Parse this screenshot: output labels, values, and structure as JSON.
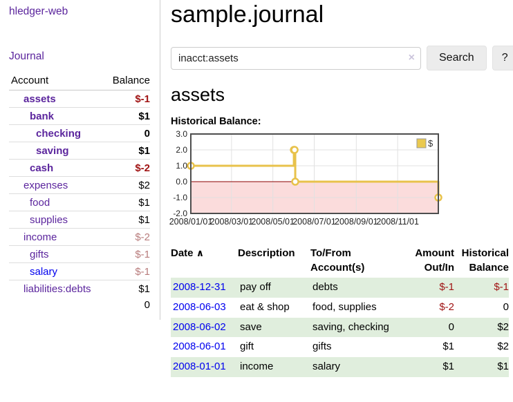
{
  "app": {
    "title": "hledger-web"
  },
  "sidebar": {
    "nav_journal": "Journal",
    "accounts": {
      "col_account": "Account",
      "col_balance": "Balance",
      "rows": [
        {
          "name": "assets",
          "depth": 0,
          "bold": true,
          "balance": "$-1",
          "neg": "strong"
        },
        {
          "name": "bank",
          "depth": 1,
          "bold": true,
          "balance": "$1",
          "neg": "none"
        },
        {
          "name": "checking",
          "depth": 2,
          "bold": true,
          "balance": "0",
          "neg": "none"
        },
        {
          "name": "saving",
          "depth": 2,
          "bold": true,
          "balance": "$1",
          "neg": "none"
        },
        {
          "name": "cash",
          "depth": 1,
          "bold": true,
          "balance": "$-2",
          "neg": "strong"
        },
        {
          "name": "expenses",
          "depth": 0,
          "bold": false,
          "balance": "$2",
          "neg": "none"
        },
        {
          "name": "food",
          "depth": 1,
          "bold": false,
          "balance": "$1",
          "neg": "none"
        },
        {
          "name": "supplies",
          "depth": 1,
          "bold": false,
          "balance": "$1",
          "neg": "none"
        },
        {
          "name": "income",
          "depth": 0,
          "bold": false,
          "balance": "$-2",
          "neg": "muted"
        },
        {
          "name": "gifts",
          "depth": 1,
          "bold": false,
          "balance": "$-1",
          "neg": "muted"
        },
        {
          "name": "salary",
          "depth": 1,
          "bold": false,
          "balance": "$-1",
          "neg": "muted",
          "link": "blue"
        },
        {
          "name": "liabilities:debts",
          "depth": 0,
          "bold": false,
          "balance": "$1",
          "neg": "none"
        }
      ],
      "total": "0"
    }
  },
  "header": {
    "title": "sample.journal"
  },
  "search": {
    "value": "inacct:assets",
    "button": "Search",
    "help": "?"
  },
  "icons": {
    "clear": "×",
    "sort_asc": "∧"
  },
  "account_page": {
    "heading": "assets",
    "chart_title": "Historical Balance:"
  },
  "chart_data": {
    "type": "line",
    "title": "Historical Balance:",
    "x_range": [
      "2008-01-01",
      "2008-12-31"
    ],
    "ylim": [
      -2,
      3
    ],
    "y_ticks": [
      "3.0",
      "2.0",
      "1.0",
      "0.0",
      "-1.0",
      "-2.0"
    ],
    "x_ticks": [
      "2008/01/01",
      "2008/03/01",
      "2008/05/01",
      "2008/07/01",
      "2008/09/01",
      "2008/11/01"
    ],
    "grid": true,
    "legend": {
      "label": "$",
      "position": "top-right",
      "swatch_color": "#eac94f"
    },
    "series": [
      {
        "name": "$",
        "color": "#e8c24b",
        "step": true,
        "points": [
          [
            "2008-01-01",
            1
          ],
          [
            "2008-06-01",
            2
          ],
          [
            "2008-06-02",
            2
          ],
          [
            "2008-06-03",
            0
          ],
          [
            "2008-12-31",
            -1
          ]
        ]
      }
    ],
    "negative_region_fill": "#fbdcdc",
    "zero_line_color": "#8b0000",
    "gridline_color": "#e1e1e1",
    "border_color": "#4d4d4d"
  },
  "register": {
    "columns": {
      "date": "Date",
      "description": "Description",
      "accounts": "To/From Account(s)",
      "amount": "Amount Out/In",
      "balance": "Historical Balance"
    },
    "rows": [
      {
        "date": "2008-12-31",
        "description": "pay off",
        "accounts": "debts",
        "amount": "$-1",
        "amount_neg": true,
        "balance": "$-1",
        "balance_neg": true
      },
      {
        "date": "2008-06-03",
        "description": "eat & shop",
        "accounts": "food, supplies",
        "amount": "$-2",
        "amount_neg": true,
        "balance": "0",
        "balance_neg": false
      },
      {
        "date": "2008-06-02",
        "description": "save",
        "accounts": "saving, checking",
        "amount": "0",
        "amount_neg": false,
        "balance": "$2",
        "balance_neg": false
      },
      {
        "date": "2008-06-01",
        "description": "gift",
        "accounts": "gifts",
        "amount": "$1",
        "amount_neg": false,
        "balance": "$2",
        "balance_neg": false
      },
      {
        "date": "2008-01-01",
        "description": "income",
        "accounts": "salary",
        "amount": "$1",
        "amount_neg": false,
        "balance": "$1",
        "balance_neg": false
      }
    ]
  },
  "colors": {
    "link_purple": "#5b259d",
    "link_blue": "#0000ee",
    "negative_strong": "#a01414",
    "negative_muted": "#b87c7c",
    "row_stripe_green": "#e0eedd"
  }
}
